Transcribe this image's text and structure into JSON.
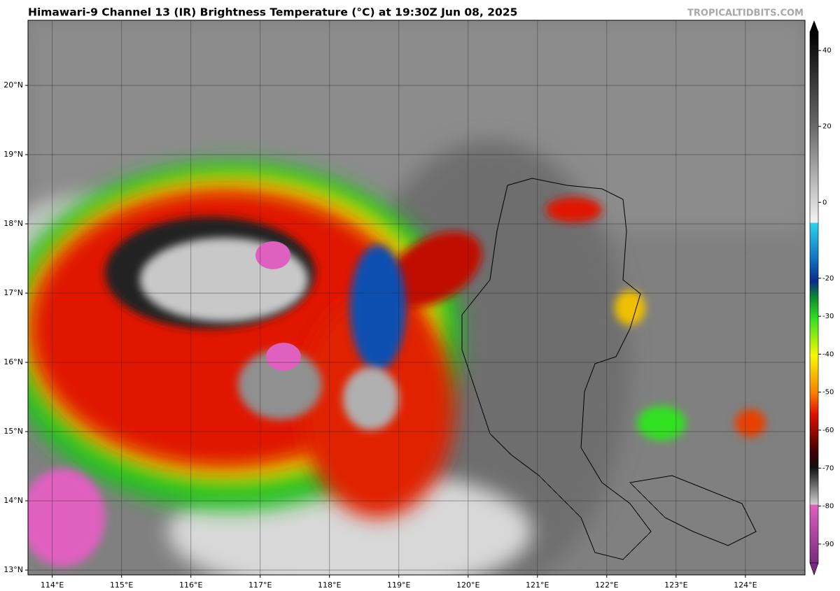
{
  "map": {
    "title": "Himawari-9 Channel 13 (IR) Brightness Temperature (°C) at 19:30Z Jun 08, 2025",
    "credit": "TROPICALTIDBITS.COM",
    "lonlim": [
      113.65,
      124.86
    ],
    "latlim": [
      12.93,
      20.94
    ],
    "lon_ticks": [
      {
        "value": 114,
        "label": "114°E"
      },
      {
        "value": 115,
        "label": "115°E"
      },
      {
        "value": 116,
        "label": "116°E"
      },
      {
        "value": 117,
        "label": "117°E"
      },
      {
        "value": 118,
        "label": "118°E"
      },
      {
        "value": 119,
        "label": "119°E"
      },
      {
        "value": 120,
        "label": "120°E"
      },
      {
        "value": 121,
        "label": "121°E"
      },
      {
        "value": 122,
        "label": "122°E"
      },
      {
        "value": 123,
        "label": "123°E"
      },
      {
        "value": 124,
        "label": "124°E"
      }
    ],
    "lat_ticks": [
      {
        "value": 13,
        "label": "13°N"
      },
      {
        "value": 14,
        "label": "14°N"
      },
      {
        "value": 15,
        "label": "15°N"
      },
      {
        "value": 16,
        "label": "16°N"
      },
      {
        "value": 17,
        "label": "17°N"
      },
      {
        "value": 18,
        "label": "18°N"
      },
      {
        "value": 19,
        "label": "19°N"
      },
      {
        "value": 20,
        "label": "20°N"
      }
    ],
    "colorbar": {
      "clim": [
        -95,
        45
      ],
      "ticks": [
        40,
        20,
        0,
        -20,
        -30,
        -40,
        -50,
        -60,
        -70,
        -80,
        -90
      ]
    }
  }
}
